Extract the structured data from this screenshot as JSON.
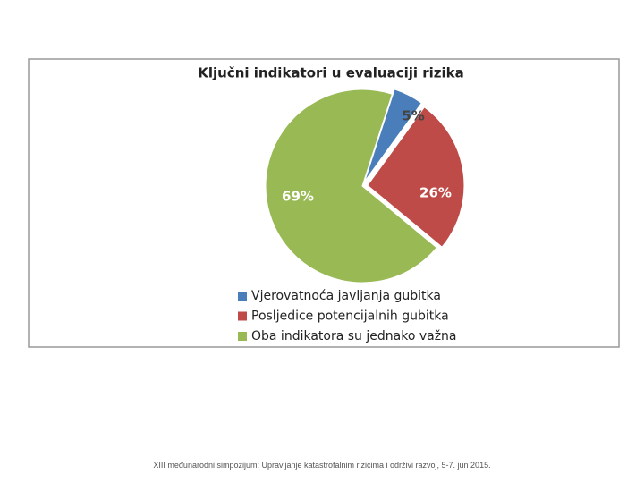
{
  "chart_data": {
    "type": "pie",
    "title": "Ključni indikatori u evaluaciji rizika",
    "categories": [
      "Vjerovatnoća javljanja gubitka",
      "Posljedice potencijalnih gubitka",
      "Oba indikatora su jednako važna"
    ],
    "values": [
      5,
      26,
      69
    ],
    "value_labels": [
      "5%",
      "26%",
      "69%"
    ],
    "colors": [
      "#4a7ebb",
      "#be4b48",
      "#98b954"
    ],
    "legend": "bottom"
  },
  "footer": "XIII međunarodni simpozijum: Upravljanje katastrofalnim rizicima i održivi razvoj, 5-7. jun 2015."
}
